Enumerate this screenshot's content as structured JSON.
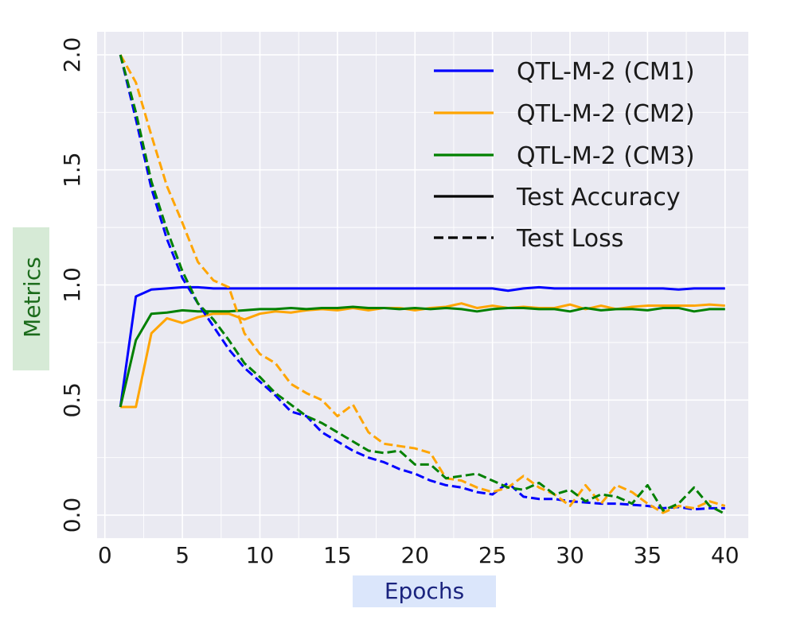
{
  "chart_data": {
    "type": "line",
    "title": "",
    "xlabel": "Epochs",
    "ylabel": "Metrics",
    "xlim": [
      -0.5,
      41.5
    ],
    "ylim": [
      -0.1,
      2.1
    ],
    "xticks": [
      "0",
      "5",
      "10",
      "15",
      "20",
      "25",
      "30",
      "35",
      "40"
    ],
    "yticks": [
      "0.0",
      "0.5",
      "1.0",
      "1.5",
      "2.0"
    ],
    "grid": true,
    "legend_position": "top-right",
    "legend": [
      {
        "label": "QTL-M-2 (CM1)",
        "color": "#0000ff",
        "style": "solid"
      },
      {
        "label": "QTL-M-2 (CM2)",
        "color": "#ffa500",
        "style": "solid"
      },
      {
        "label": "QTL-M-2 (CM3)",
        "color": "#008000",
        "style": "solid"
      },
      {
        "label": "Test Accuracy",
        "color": "#000000",
        "style": "solid"
      },
      {
        "label": "Test Loss",
        "color": "#000000",
        "style": "dashed"
      }
    ],
    "x": [
      1,
      2,
      3,
      4,
      5,
      6,
      7,
      8,
      9,
      10,
      11,
      12,
      13,
      14,
      15,
      16,
      17,
      18,
      19,
      20,
      21,
      22,
      23,
      24,
      25,
      26,
      27,
      28,
      29,
      30,
      31,
      32,
      33,
      34,
      35,
      36,
      37,
      38,
      39,
      40
    ],
    "series": [
      {
        "name": "QTL-M-2 (CM1)",
        "metric": "Test Accuracy",
        "color": "#0000ff",
        "style": "solid",
        "values": [
          0.47,
          0.95,
          0.98,
          0.985,
          0.99,
          0.99,
          0.985,
          0.985,
          0.985,
          0.985,
          0.985,
          0.985,
          0.985,
          0.985,
          0.985,
          0.985,
          0.985,
          0.985,
          0.985,
          0.985,
          0.985,
          0.985,
          0.985,
          0.985,
          0.985,
          0.975,
          0.985,
          0.99,
          0.985,
          0.985,
          0.985,
          0.985,
          0.985,
          0.985,
          0.985,
          0.985,
          0.98,
          0.985,
          0.985,
          0.985
        ]
      },
      {
        "name": "QTL-M-2 (CM2)",
        "metric": "Test Accuracy",
        "color": "#ffa500",
        "style": "solid",
        "values": [
          0.47,
          0.47,
          0.79,
          0.855,
          0.835,
          0.86,
          0.875,
          0.875,
          0.85,
          0.875,
          0.885,
          0.88,
          0.89,
          0.895,
          0.89,
          0.9,
          0.89,
          0.9,
          0.9,
          0.89,
          0.9,
          0.905,
          0.92,
          0.9,
          0.91,
          0.9,
          0.905,
          0.9,
          0.9,
          0.915,
          0.895,
          0.91,
          0.895,
          0.905,
          0.91,
          0.91,
          0.91,
          0.91,
          0.915,
          0.91
        ]
      },
      {
        "name": "QTL-M-2 (CM3)",
        "metric": "Test Accuracy",
        "color": "#008000",
        "style": "solid",
        "values": [
          0.47,
          0.76,
          0.875,
          0.88,
          0.89,
          0.885,
          0.885,
          0.885,
          0.89,
          0.895,
          0.895,
          0.9,
          0.895,
          0.9,
          0.9,
          0.905,
          0.9,
          0.9,
          0.895,
          0.9,
          0.895,
          0.9,
          0.895,
          0.885,
          0.895,
          0.9,
          0.9,
          0.895,
          0.895,
          0.885,
          0.9,
          0.89,
          0.895,
          0.895,
          0.89,
          0.9,
          0.9,
          0.885,
          0.895,
          0.895
        ]
      },
      {
        "name": "QTL-M-2 (CM1)",
        "metric": "Test Loss",
        "color": "#0000ff",
        "style": "dashed",
        "values": [
          2.0,
          1.72,
          1.42,
          1.2,
          1.03,
          0.92,
          0.82,
          0.72,
          0.64,
          0.58,
          0.52,
          0.45,
          0.43,
          0.36,
          0.32,
          0.28,
          0.25,
          0.23,
          0.2,
          0.18,
          0.15,
          0.13,
          0.12,
          0.1,
          0.09,
          0.14,
          0.08,
          0.07,
          0.07,
          0.06,
          0.055,
          0.05,
          0.05,
          0.045,
          0.04,
          0.03,
          0.035,
          0.025,
          0.03,
          0.03
        ]
      },
      {
        "name": "QTL-M-2 (CM2)",
        "metric": "Test Loss",
        "color": "#ffa500",
        "style": "dashed",
        "values": [
          2.0,
          1.88,
          1.65,
          1.43,
          1.27,
          1.1,
          1.02,
          0.99,
          0.79,
          0.7,
          0.66,
          0.57,
          0.53,
          0.5,
          0.43,
          0.48,
          0.36,
          0.31,
          0.3,
          0.29,
          0.27,
          0.16,
          0.15,
          0.12,
          0.1,
          0.12,
          0.17,
          0.12,
          0.09,
          0.04,
          0.13,
          0.05,
          0.13,
          0.1,
          0.05,
          0.01,
          0.04,
          0.03,
          0.06,
          0.04
        ]
      },
      {
        "name": "QTL-M-2 (CM3)",
        "metric": "Test Loss",
        "color": "#008000",
        "style": "dashed",
        "values": [
          2.0,
          1.75,
          1.45,
          1.24,
          1.06,
          0.92,
          0.85,
          0.76,
          0.66,
          0.6,
          0.53,
          0.48,
          0.43,
          0.4,
          0.36,
          0.32,
          0.28,
          0.27,
          0.28,
          0.22,
          0.22,
          0.16,
          0.17,
          0.18,
          0.15,
          0.12,
          0.11,
          0.14,
          0.09,
          0.11,
          0.06,
          0.09,
          0.08,
          0.05,
          0.13,
          0.02,
          0.05,
          0.12,
          0.04,
          0.005
        ]
      }
    ]
  },
  "colors": {
    "plot_background": "#eaeaf2",
    "grid": "#ffffff",
    "ylabel_background": "#d6ead6",
    "ylabel_text": "#1b6b1b",
    "xlabel_background": "#dbe6fb",
    "xlabel_text": "#1a237e"
  }
}
